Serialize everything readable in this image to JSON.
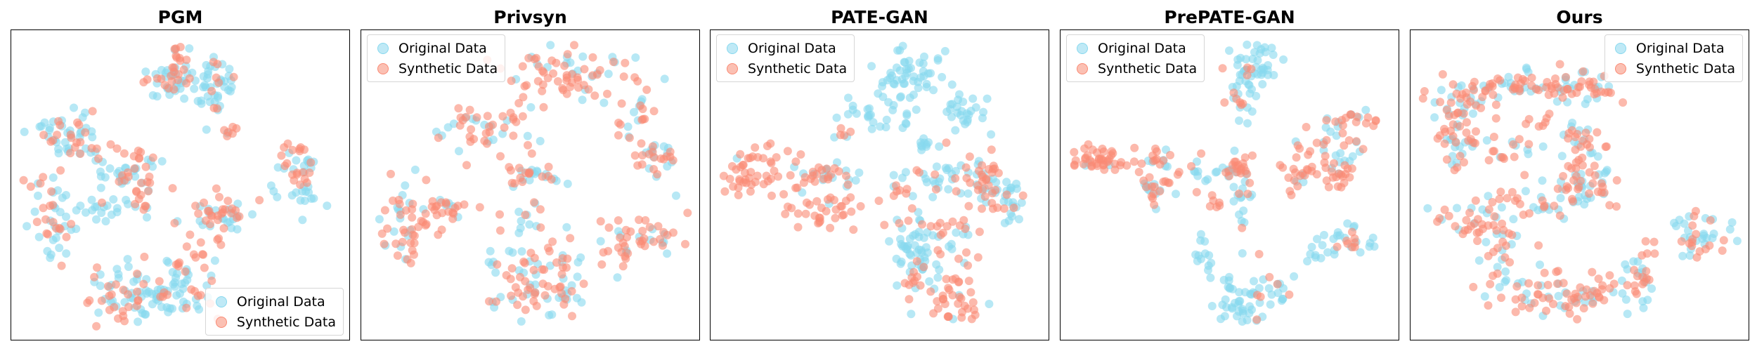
{
  "colors": {
    "original": "#87D8EE",
    "synthetic": "#FA8A74",
    "original_marker": "#BFE9F6",
    "synthetic_marker": "#FBC0B3"
  },
  "legend": {
    "original_label": "Original Data",
    "synthetic_label": "Synthetic Data"
  },
  "chart_data": [
    {
      "type": "scatter",
      "title": "PGM",
      "xlabel": "",
      "ylabel": "",
      "xlim": [
        0,
        100
      ],
      "ylim": [
        0,
        100
      ],
      "axes_ticks": false,
      "legend_position": "bottom-right",
      "clusters": [
        {
          "cx": 47,
          "cy": 86,
          "spread": [
            4,
            3
          ],
          "count": 40,
          "mix": 0.45
        },
        {
          "cx": 60,
          "cy": 84,
          "spread": [
            4,
            5
          ],
          "count": 45,
          "mix": 0.15
        },
        {
          "cx": 50,
          "cy": 94,
          "spread": [
            2,
            3
          ],
          "count": 14,
          "mix": 0.85
        },
        {
          "cx": 64,
          "cy": 68,
          "spread": [
            3,
            2
          ],
          "count": 8,
          "mix": 0.8
        },
        {
          "cx": 16,
          "cy": 66,
          "spread": [
            6,
            5
          ],
          "count": 55,
          "mix": 0.4
        },
        {
          "cx": 32,
          "cy": 54,
          "spread": [
            6,
            3
          ],
          "count": 35,
          "mix": 0.3
        },
        {
          "cx": 38,
          "cy": 50,
          "spread": [
            2,
            6
          ],
          "count": 20,
          "mix": 0.9
        },
        {
          "cx": 10,
          "cy": 40,
          "spread": [
            4,
            8
          ],
          "count": 50,
          "mix": 0.55
        },
        {
          "cx": 28,
          "cy": 42,
          "spread": [
            8,
            2
          ],
          "count": 22,
          "mix": 0.15
        },
        {
          "cx": 63,
          "cy": 40,
          "spread": [
            6,
            4
          ],
          "count": 45,
          "mix": 0.6
        },
        {
          "cx": 58,
          "cy": 26,
          "spread": [
            2,
            10
          ],
          "count": 14,
          "mix": 0.85
        },
        {
          "cx": 35,
          "cy": 16,
          "spread": [
            8,
            4
          ],
          "count": 40,
          "mix": 0.3
        },
        {
          "cx": 46,
          "cy": 11,
          "spread": [
            6,
            3
          ],
          "count": 35,
          "mix": 0.2
        },
        {
          "cx": 50,
          "cy": 20,
          "spread": [
            4,
            4
          ],
          "count": 25,
          "mix": 0.25
        },
        {
          "cx": 29,
          "cy": 10,
          "spread": [
            4,
            3
          ],
          "count": 20,
          "mix": 0.8
        },
        {
          "cx": 88,
          "cy": 53,
          "spread": [
            4,
            6
          ],
          "count": 40,
          "mix": 0.35
        },
        {
          "cx": 84,
          "cy": 62,
          "spread": [
            2,
            2
          ],
          "count": 8,
          "mix": 0.9
        }
      ]
    },
    {
      "type": "scatter",
      "title": "Privsyn",
      "xlabel": "",
      "ylabel": "",
      "xlim": [
        0,
        100
      ],
      "ylim": [
        0,
        100
      ],
      "axes_ticks": false,
      "legend_position": "top-left",
      "clusters": [
        {
          "cx": 62,
          "cy": 88,
          "spread": [
            12,
            5
          ],
          "count": 70,
          "mix": 0.65
        },
        {
          "cx": 35,
          "cy": 70,
          "spread": [
            8,
            4
          ],
          "count": 45,
          "mix": 0.6
        },
        {
          "cx": 48,
          "cy": 58,
          "spread": [
            3,
            5
          ],
          "count": 18,
          "mix": 0.7
        },
        {
          "cx": 54,
          "cy": 53,
          "spread": [
            4,
            2
          ],
          "count": 15,
          "mix": 0.5
        },
        {
          "cx": 83,
          "cy": 70,
          "spread": [
            3,
            8
          ],
          "count": 25,
          "mix": 0.65
        },
        {
          "cx": 89,
          "cy": 60,
          "spread": [
            3,
            3
          ],
          "count": 25,
          "mix": 0.6
        },
        {
          "cx": 12,
          "cy": 36,
          "spread": [
            5,
            8
          ],
          "count": 50,
          "mix": 0.65
        },
        {
          "cx": 26,
          "cy": 42,
          "spread": [
            7,
            2
          ],
          "count": 25,
          "mix": 0.6
        },
        {
          "cx": 48,
          "cy": 40,
          "spread": [
            3,
            4
          ],
          "count": 15,
          "mix": 0.7
        },
        {
          "cx": 60,
          "cy": 27,
          "spread": [
            3,
            6
          ],
          "count": 18,
          "mix": 0.75
        },
        {
          "cx": 78,
          "cy": 30,
          "spread": [
            3,
            5
          ],
          "count": 20,
          "mix": 0.7
        },
        {
          "cx": 87,
          "cy": 33,
          "spread": [
            6,
            4
          ],
          "count": 30,
          "mix": 0.6
        },
        {
          "cx": 44,
          "cy": 18,
          "spread": [
            5,
            6
          ],
          "count": 35,
          "mix": 0.55
        },
        {
          "cx": 55,
          "cy": 14,
          "spread": [
            6,
            7
          ],
          "count": 40,
          "mix": 0.55
        }
      ]
    },
    {
      "type": "scatter",
      "title": "PATE-GAN",
      "xlabel": "",
      "ylabel": "",
      "xlim": [
        0,
        100
      ],
      "ylim": [
        0,
        100
      ],
      "axes_ticks": false,
      "legend_position": "top-left",
      "clusters": [
        {
          "cx": 58,
          "cy": 86,
          "spread": [
            5,
            6
          ],
          "count": 55,
          "mix": 0.0
        },
        {
          "cx": 49,
          "cy": 72,
          "spread": [
            9,
            3
          ],
          "count": 25,
          "mix": 0.0
        },
        {
          "cx": 75,
          "cy": 76,
          "spread": [
            4,
            3
          ],
          "count": 25,
          "mix": 0.0
        },
        {
          "cx": 63,
          "cy": 64,
          "spread": [
            3,
            1.5
          ],
          "count": 10,
          "mix": 0.0
        },
        {
          "cx": 11,
          "cy": 55,
          "spread": [
            7,
            5
          ],
          "count": 55,
          "mix": 0.95
        },
        {
          "cx": 28,
          "cy": 53,
          "spread": [
            5,
            2
          ],
          "count": 20,
          "mix": 0.7
        },
        {
          "cx": 38,
          "cy": 55,
          "spread": [
            4,
            2
          ],
          "count": 15,
          "mix": 0.3
        },
        {
          "cx": 32,
          "cy": 42,
          "spread": [
            7,
            4
          ],
          "count": 35,
          "mix": 0.85
        },
        {
          "cx": 72,
          "cy": 53,
          "spread": [
            7,
            3
          ],
          "count": 40,
          "mix": 0.15
        },
        {
          "cx": 84,
          "cy": 52,
          "spread": [
            4,
            6
          ],
          "count": 40,
          "mix": 0.65
        },
        {
          "cx": 91,
          "cy": 45,
          "spread": [
            2,
            5
          ],
          "count": 20,
          "mix": 0.05
        },
        {
          "cx": 62,
          "cy": 28,
          "spread": [
            4,
            8
          ],
          "count": 50,
          "mix": 0.1
        },
        {
          "cx": 60,
          "cy": 20,
          "spread": [
            3,
            3
          ],
          "count": 15,
          "mix": 0.9
        },
        {
          "cx": 72,
          "cy": 33,
          "spread": [
            5,
            6
          ],
          "count": 30,
          "mix": 0.5
        },
        {
          "cx": 74,
          "cy": 12,
          "spread": [
            4,
            5
          ],
          "count": 35,
          "mix": 0.85
        },
        {
          "cx": 56,
          "cy": 48,
          "spread": [
            1.5,
            1.5
          ],
          "count": 6,
          "mix": 1.0
        },
        {
          "cx": 38,
          "cy": 68,
          "spread": [
            1.5,
            1.5
          ],
          "count": 4,
          "mix": 1.0
        }
      ]
    },
    {
      "type": "scatter",
      "title": "PrePATE-GAN",
      "xlabel": "",
      "ylabel": "",
      "xlim": [
        0,
        100
      ],
      "ylim": [
        0,
        100
      ],
      "axes_ticks": false,
      "legend_position": "top-left",
      "clusters": [
        {
          "cx": 55,
          "cy": 88,
          "spread": [
            3,
            6
          ],
          "count": 40,
          "mix": 0.1
        },
        {
          "cx": 61,
          "cy": 89,
          "spread": [
            2,
            4
          ],
          "count": 20,
          "mix": 0.1
        },
        {
          "cx": 52,
          "cy": 77,
          "spread": [
            1.5,
            2
          ],
          "count": 6,
          "mix": 0.9
        },
        {
          "cx": 9,
          "cy": 59,
          "spread": [
            4,
            2
          ],
          "count": 40,
          "mix": 0.95
        },
        {
          "cx": 26,
          "cy": 58,
          "spread": [
            6,
            4
          ],
          "count": 30,
          "mix": 0.85
        },
        {
          "cx": 28,
          "cy": 49,
          "spread": [
            3,
            3
          ],
          "count": 20,
          "mix": 0.55
        },
        {
          "cx": 43,
          "cy": 55,
          "spread": [
            5,
            1.5
          ],
          "count": 15,
          "mix": 0.0
        },
        {
          "cx": 53,
          "cy": 56,
          "spread": [
            2,
            3
          ],
          "count": 20,
          "mix": 0.9
        },
        {
          "cx": 53,
          "cy": 42,
          "spread": [
            2,
            8
          ],
          "count": 20,
          "mix": 0.1
        },
        {
          "cx": 45,
          "cy": 44,
          "spread": [
            1.5,
            1.5
          ],
          "count": 6,
          "mix": 1.0
        },
        {
          "cx": 71,
          "cy": 58,
          "spread": [
            4,
            5
          ],
          "count": 30,
          "mix": 0.85
        },
        {
          "cx": 85,
          "cy": 63,
          "spread": [
            4,
            6
          ],
          "count": 30,
          "mix": 0.5
        },
        {
          "cx": 90,
          "cy": 72,
          "spread": [
            3,
            2
          ],
          "count": 15,
          "mix": 0.8
        },
        {
          "cx": 83,
          "cy": 53,
          "spread": [
            3,
            3
          ],
          "count": 15,
          "mix": 0.9
        },
        {
          "cx": 88,
          "cy": 31,
          "spread": [
            4,
            3
          ],
          "count": 25,
          "mix": 0.4
        },
        {
          "cx": 77,
          "cy": 28,
          "spread": [
            3,
            2
          ],
          "count": 10,
          "mix": 0.0
        },
        {
          "cx": 42,
          "cy": 27,
          "spread": [
            2,
            3
          ],
          "count": 12,
          "mix": 0.0
        },
        {
          "cx": 53,
          "cy": 11,
          "spread": [
            5,
            5
          ],
          "count": 40,
          "mix": 0.0
        },
        {
          "cx": 63,
          "cy": 14,
          "spread": [
            4,
            4
          ],
          "count": 20,
          "mix": 0.3
        }
      ]
    },
    {
      "type": "scatter",
      "title": "Ours",
      "xlabel": "",
      "ylabel": "",
      "xlim": [
        0,
        100
      ],
      "ylim": [
        0,
        100
      ],
      "axes_ticks": false,
      "legend_position": "top-right",
      "clusters": [
        {
          "cx": 14,
          "cy": 78,
          "spread": [
            6,
            4
          ],
          "count": 45,
          "mix": 0.6
        },
        {
          "cx": 28,
          "cy": 84,
          "spread": [
            7,
            2
          ],
          "count": 30,
          "mix": 0.55
        },
        {
          "cx": 10,
          "cy": 64,
          "spread": [
            3,
            5
          ],
          "count": 25,
          "mix": 0.55
        },
        {
          "cx": 25,
          "cy": 64,
          "spread": [
            8,
            3
          ],
          "count": 30,
          "mix": 0.6
        },
        {
          "cx": 40,
          "cy": 83,
          "spread": [
            6,
            3
          ],
          "count": 30,
          "mix": 0.7
        },
        {
          "cx": 53,
          "cy": 85,
          "spread": [
            5,
            3
          ],
          "count": 30,
          "mix": 0.6
        },
        {
          "cx": 35,
          "cy": 72,
          "spread": [
            2,
            1.5
          ],
          "count": 6,
          "mix": 0.9
        },
        {
          "cx": 50,
          "cy": 64,
          "spread": [
            3,
            8
          ],
          "count": 35,
          "mix": 0.65
        },
        {
          "cx": 52,
          "cy": 52,
          "spread": [
            6,
            4
          ],
          "count": 35,
          "mix": 0.6
        },
        {
          "cx": 40,
          "cy": 45,
          "spread": [
            10,
            3
          ],
          "count": 40,
          "mix": 0.6
        },
        {
          "cx": 18,
          "cy": 38,
          "spread": [
            7,
            4
          ],
          "count": 40,
          "mix": 0.65
        },
        {
          "cx": 26,
          "cy": 24,
          "spread": [
            4,
            6
          ],
          "count": 30,
          "mix": 0.6
        },
        {
          "cx": 40,
          "cy": 13,
          "spread": [
            7,
            4
          ],
          "count": 40,
          "mix": 0.6
        },
        {
          "cx": 55,
          "cy": 13,
          "spread": [
            7,
            4
          ],
          "count": 40,
          "mix": 0.6
        },
        {
          "cx": 67,
          "cy": 20,
          "spread": [
            4,
            4
          ],
          "count": 25,
          "mix": 0.65
        },
        {
          "cx": 87,
          "cy": 33,
          "spread": [
            5,
            5
          ],
          "count": 40,
          "mix": 0.55
        }
      ]
    }
  ]
}
